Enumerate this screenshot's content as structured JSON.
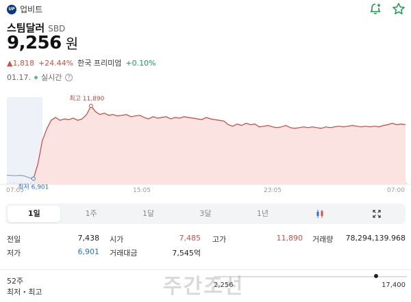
{
  "header": {
    "exchange_logo": "UP",
    "exchange_name": "업비트",
    "icons": [
      "bell-plus-icon",
      "star-icon"
    ]
  },
  "coin": {
    "name": "스팀달러",
    "symbol": "SBD",
    "price": "9,256",
    "price_unit": "원",
    "change_amount": "1,818",
    "change_percent": "+24.44%",
    "premium_label": "한국 프리미엄",
    "premium_value": "+0.10%",
    "date": "01.17.",
    "realtime_label": "실시간"
  },
  "colors": {
    "up": "#d24f45",
    "down": "#2a6fd6",
    "green": "#1b9c4a",
    "chart_line": "#c9453b",
    "chart_fill": "#fbe3e1"
  },
  "chart_data": {
    "type": "area",
    "x_ticks": [
      "07:05",
      "15:05",
      "23:05",
      "07:00"
    ],
    "high_label": "최고 11,890",
    "low_label": "최저 6,901",
    "ylim": [
      6500,
      12500
    ],
    "series": [
      {
        "values": [
          7140,
          7120,
          7100,
          7130,
          7080,
          6960,
          6901,
          7900,
          9500,
          10300,
          10900,
          11100,
          10900,
          11000,
          10950,
          11050,
          10900,
          11000,
          11300,
          11890,
          11500,
          11300,
          11400,
          11250,
          11300,
          11200,
          11250,
          11300,
          11150,
          11200,
          11250,
          11100,
          11000,
          11150,
          11050,
          11100,
          11150,
          11000,
          11100,
          11050,
          11150,
          11100,
          11050,
          11000,
          10950,
          11100,
          11000,
          10950,
          10900,
          10850,
          10600,
          10500,
          10650,
          10550,
          10700,
          10600,
          10650,
          10450,
          10500,
          10550,
          10450,
          10400,
          10450,
          10550,
          10400,
          10350,
          10400,
          10450,
          10400,
          10450,
          10400,
          10350,
          10450,
          10400,
          10450,
          10500,
          10450,
          10500,
          10550,
          10500,
          10450,
          10500,
          10450,
          10500,
          10450,
          10550,
          10600,
          10700,
          10600,
          10650,
          10600
        ]
      }
    ]
  },
  "tabs": [
    {
      "label": "1일",
      "active": true
    },
    {
      "label": "1주",
      "active": false
    },
    {
      "label": "1달",
      "active": false
    },
    {
      "label": "3달",
      "active": false
    },
    {
      "label": "1년",
      "active": false
    }
  ],
  "tab_icons": [
    "candlestick-icon",
    "expand-icon"
  ],
  "stats": {
    "prev_close_label": "전일",
    "prev_close": "7,438",
    "open_label": "시가",
    "open": "7,485",
    "high_label": "고가",
    "high": "11,890",
    "volume_label": "거래량",
    "volume": "78,294,139.968",
    "low_label": "저가",
    "low": "6,901",
    "turnover_label": "거래대금",
    "turnover": "7,545억"
  },
  "week52": {
    "label1": "52주",
    "label2": "최저・최고",
    "low": "2,256",
    "high": "17,400",
    "position": 0.84
  },
  "watermark": "주간조선"
}
